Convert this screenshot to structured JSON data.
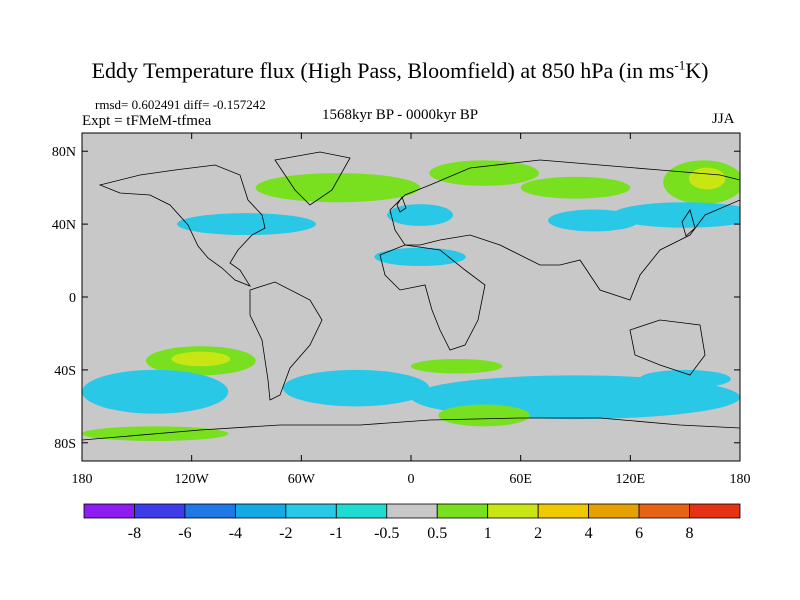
{
  "title": {
    "main": "Eddy Temperature flux (High Pass, Bloomfield) at 850 hPa (in ms",
    "sup": "-1",
    "end": "K)"
  },
  "stats": "rmsd= 0.602491 diff= -0.157242",
  "experiment": "Expt = tFMeM-tfmea",
  "period": "1568kyr BP - 0000kyr BP",
  "season": "JJA",
  "axes": {
    "lat_labels": [
      "80N",
      "40N",
      "0",
      "40S",
      "80S"
    ],
    "lat_values": [
      80,
      40,
      0,
      -40,
      -80
    ],
    "lon_labels": [
      "180",
      "120W",
      "60W",
      "0",
      "60E",
      "120E",
      "180"
    ],
    "lon_values": [
      -180,
      -120,
      -60,
      0,
      60,
      120,
      180
    ]
  },
  "colorbar": {
    "labels": [
      "-8",
      "-6",
      "-4",
      "-2",
      "-1",
      "-0.5",
      "0.5",
      "1",
      "2",
      "4",
      "6",
      "8"
    ],
    "colors": [
      "#8c1cf0",
      "#3c3ce8",
      "#1e78e6",
      "#14aae6",
      "#28c8e6",
      "#1edcd2",
      "#c8c8c8",
      "#78e01e",
      "#c8e614",
      "#f0c800",
      "#e6a000",
      "#e66414",
      "#e63214"
    ]
  },
  "map_data": {
    "background_value": "0.5 to -0.5",
    "background_color": "#c8c8c8",
    "regions": [
      {
        "name": "north-pacific-positive",
        "lon": 160,
        "lat": 63,
        "rlon": 22,
        "rlat": 12,
        "color": "#78e01e"
      },
      {
        "name": "north-pacific-core",
        "lon": 162,
        "lat": 65,
        "rlon": 10,
        "rlat": 6,
        "color": "#c8e614"
      },
      {
        "name": "north-pacific-negative",
        "lon": 150,
        "lat": 45,
        "rlon": 40,
        "rlat": 7,
        "color": "#28c8e6"
      },
      {
        "name": "north-atlantic-positive",
        "lon": -40,
        "lat": 60,
        "rlon": 45,
        "rlat": 8,
        "color": "#78e01e"
      },
      {
        "name": "north-america-negative",
        "lon": -90,
        "lat": 40,
        "rlon": 38,
        "rlat": 6,
        "color": "#28c8e6"
      },
      {
        "name": "arctic-russia-positive",
        "lon": 40,
        "lat": 68,
        "rlon": 30,
        "rlat": 7,
        "color": "#78e01e"
      },
      {
        "name": "eurasia-negative",
        "lon": 5,
        "lat": 45,
        "rlon": 18,
        "rlat": 6,
        "color": "#28c8e6"
      },
      {
        "name": "mediterranean-negative",
        "lon": 5,
        "lat": 22,
        "rlon": 25,
        "rlat": 5,
        "color": "#28c8e6"
      },
      {
        "name": "north-siberia-positive",
        "lon": 90,
        "lat": 60,
        "rlon": 30,
        "rlat": 6,
        "color": "#78e01e"
      },
      {
        "name": "asia-negative",
        "lon": 100,
        "lat": 42,
        "rlon": 25,
        "rlat": 6,
        "color": "#28c8e6"
      },
      {
        "name": "south-pacific-positive",
        "lon": -115,
        "lat": -35,
        "rlon": 30,
        "rlat": 8,
        "color": "#78e01e"
      },
      {
        "name": "south-pacific-core",
        "lon": -115,
        "lat": -34,
        "rlon": 16,
        "rlat": 4,
        "color": "#c8e614"
      },
      {
        "name": "south-pacific-negative",
        "lon": -140,
        "lat": -52,
        "rlon": 40,
        "rlat": 12,
        "color": "#28c8e6"
      },
      {
        "name": "south-atlantic-negative",
        "lon": -30,
        "lat": -50,
        "rlon": 40,
        "rlat": 10,
        "color": "#28c8e6"
      },
      {
        "name": "south-indian-negative",
        "lon": 90,
        "lat": -55,
        "rlon": 90,
        "rlat": 12,
        "color": "#28c8e6"
      },
      {
        "name": "south-africa-positive",
        "lon": 25,
        "lat": -38,
        "rlon": 25,
        "rlat": 4,
        "color": "#78e01e"
      },
      {
        "name": "southern-ocean-positive",
        "lon": 40,
        "lat": -65,
        "rlon": 25,
        "rlat": 6,
        "color": "#78e01e"
      },
      {
        "name": "antarctic-positive",
        "lon": -140,
        "lat": -75,
        "rlon": 40,
        "rlat": 4,
        "color": "#78e01e"
      },
      {
        "name": "australia-negative",
        "lon": 150,
        "lat": -45,
        "rlon": 25,
        "rlat": 5,
        "color": "#28c8e6"
      }
    ]
  }
}
